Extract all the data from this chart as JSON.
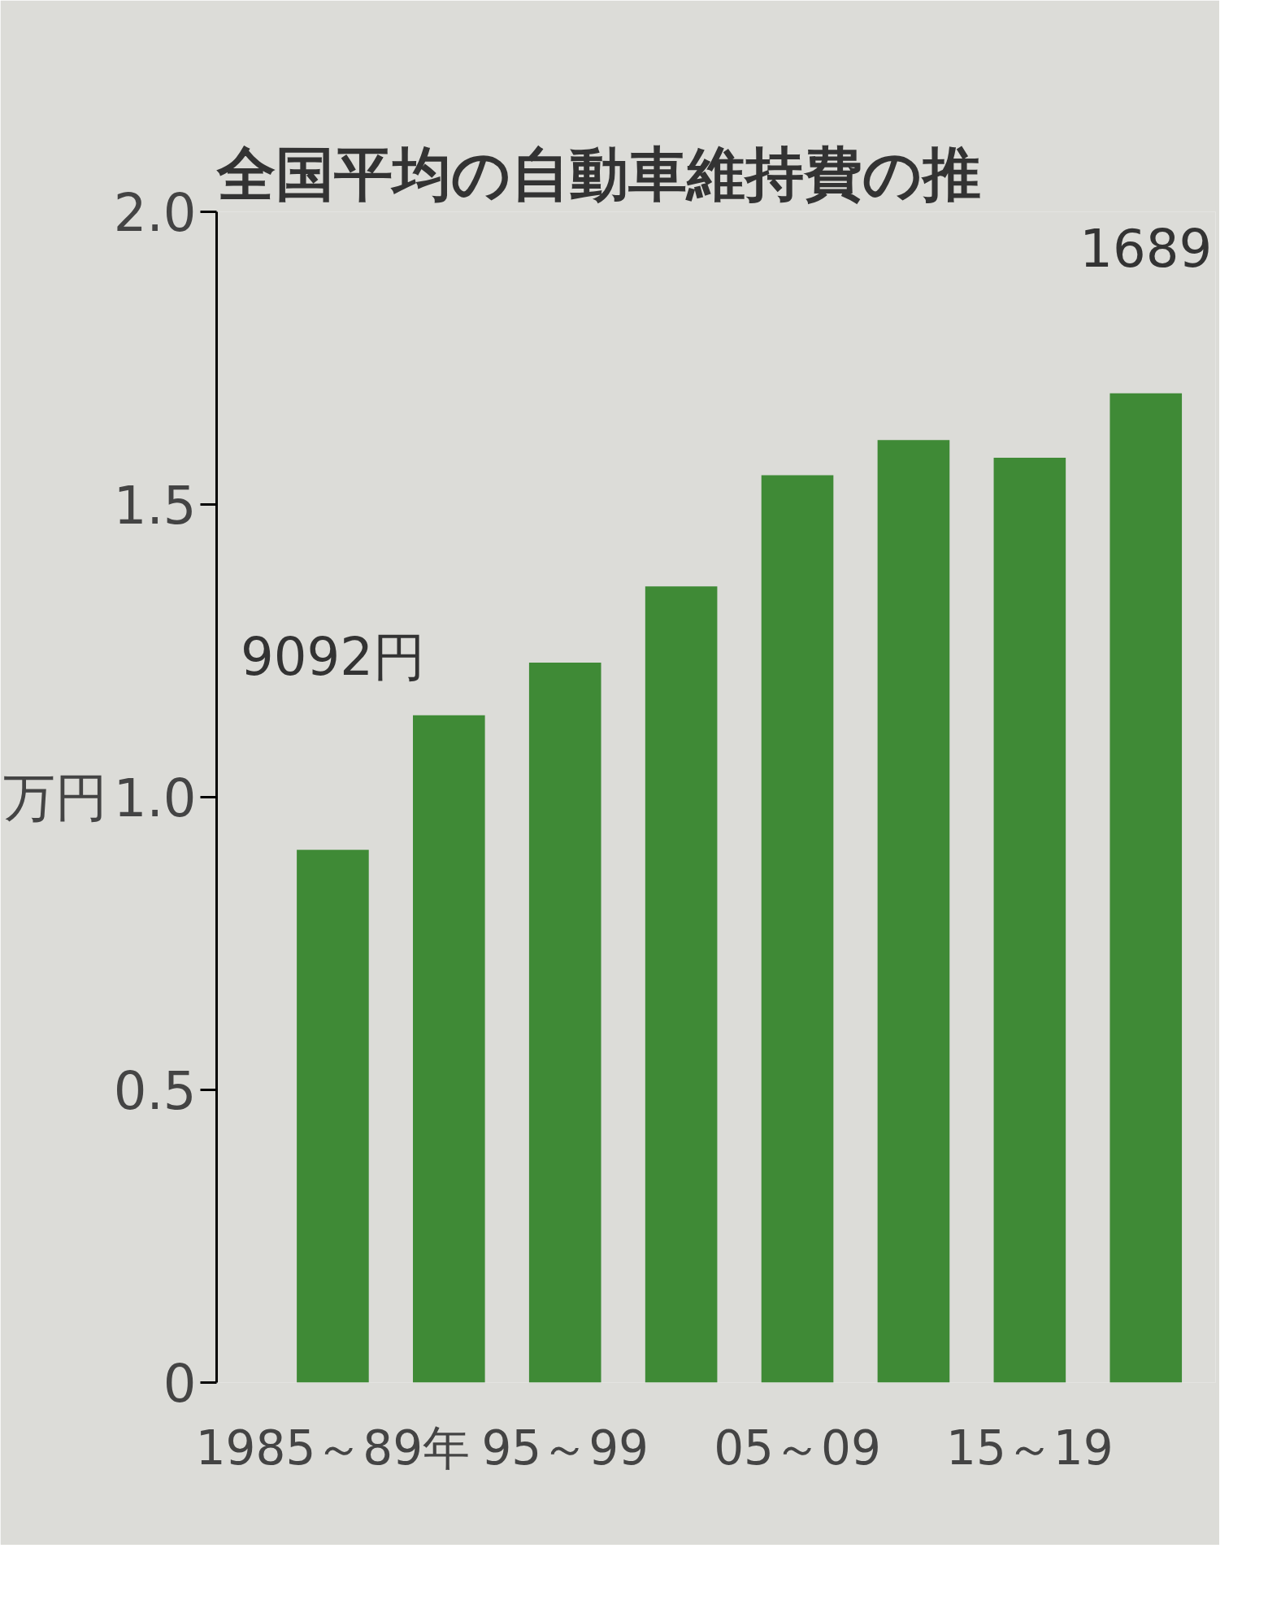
{
  "chart_data": {
    "type": "bar",
    "title": "全国平均の自動車維持費の推",
    "ylabel": "万円",
    "categories": [
      "1985～89年",
      null,
      "95～99",
      null,
      "05～09",
      null,
      "15～19",
      null
    ],
    "values": [
      0.91,
      1.14,
      1.23,
      1.36,
      1.55,
      1.61,
      1.58,
      1.69
    ],
    "annotations": [
      "9092円",
      "1689"
    ],
    "color": "#3f8a36",
    "ylim": [
      0,
      2.0
    ],
    "yticks": [
      0,
      {
        "value": 0.5,
        "label": "0.5"
      },
      {
        "value": 1.0,
        "label": "1.0"
      },
      {
        "value": 1.5,
        "label": "1.5"
      },
      {
        "value": 2.0,
        "label": "2.0"
      }
    ],
    "grid": false
  }
}
